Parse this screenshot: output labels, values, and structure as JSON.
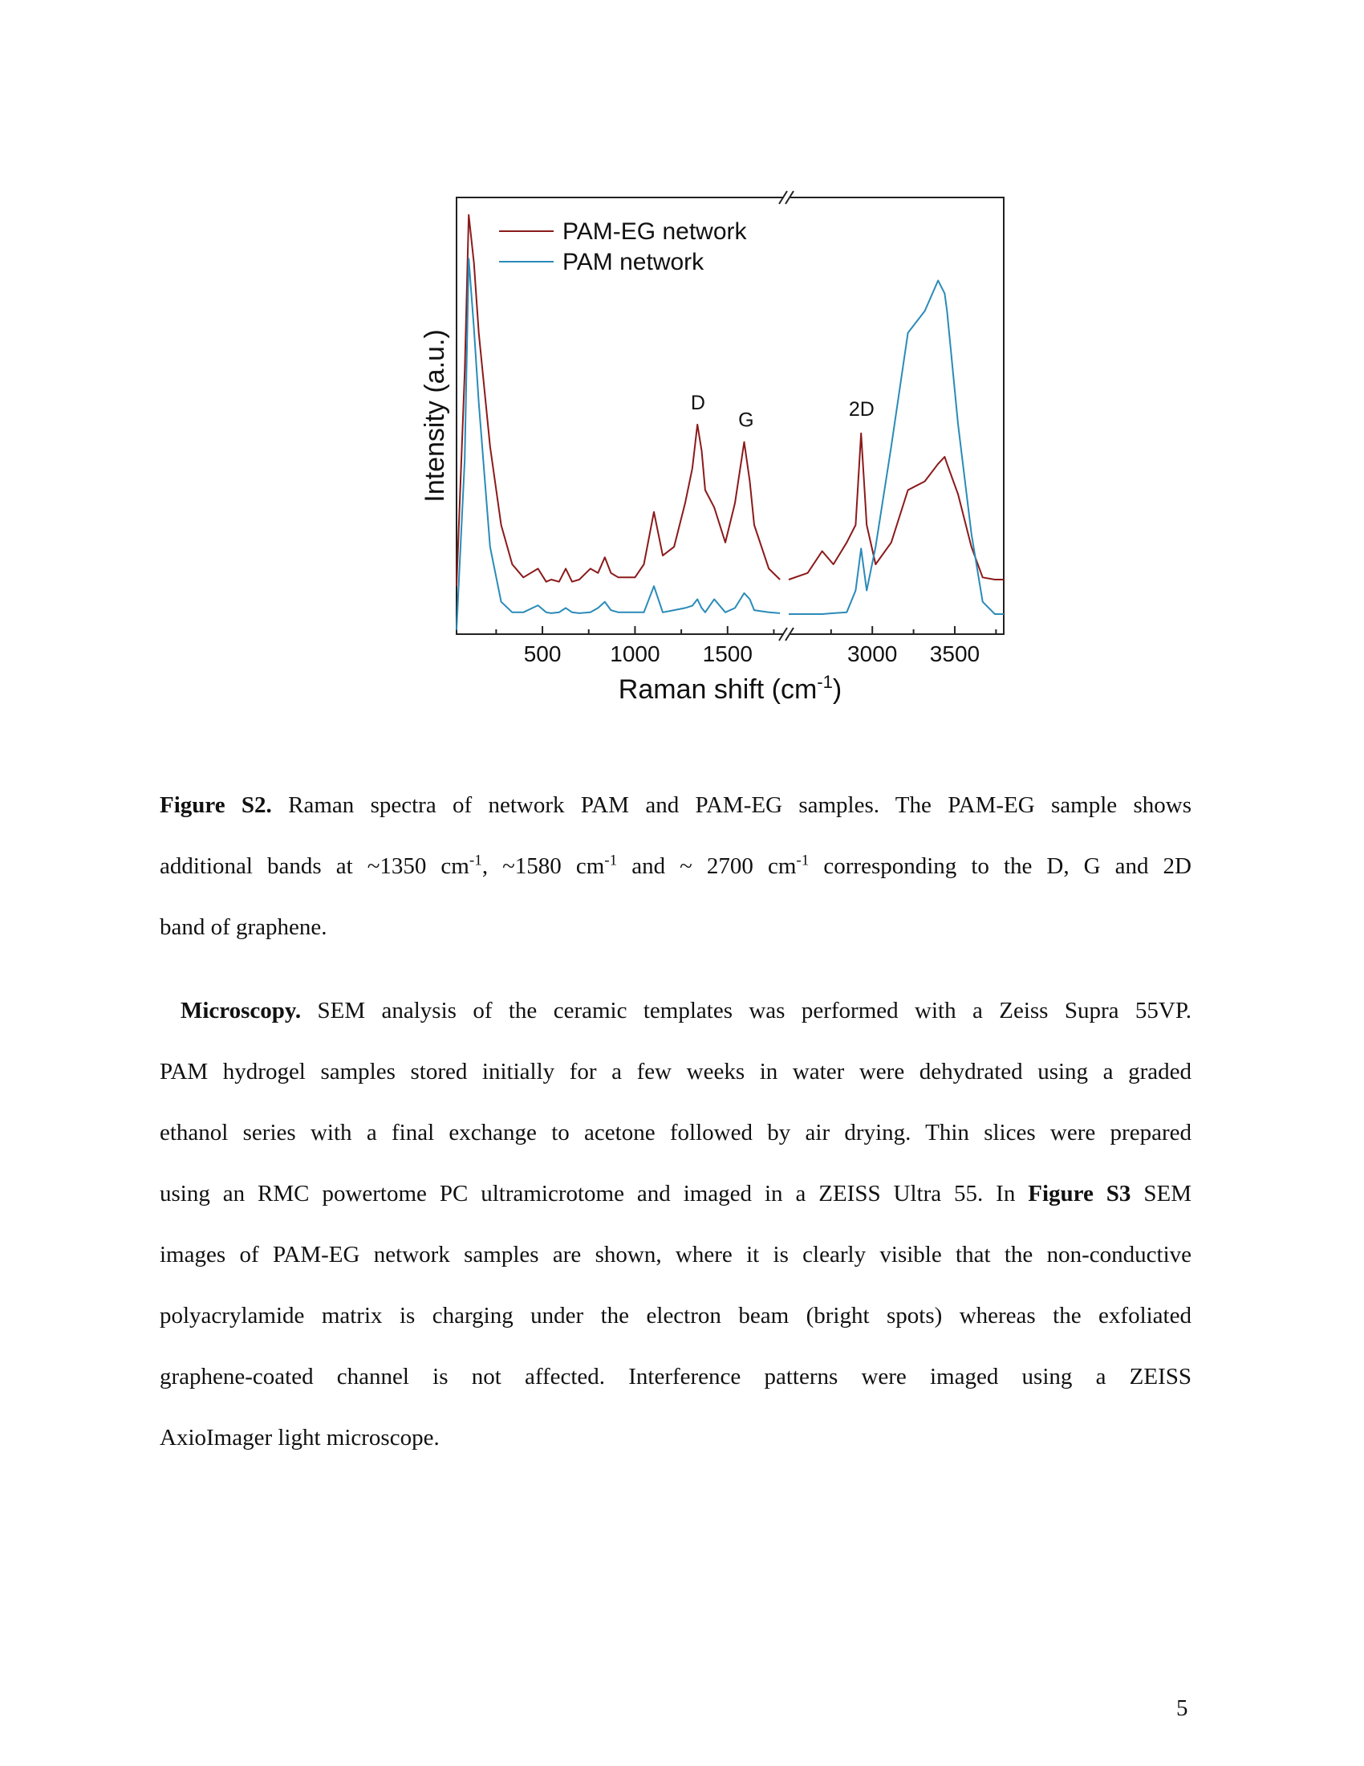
{
  "chart_data": {
    "type": "line",
    "ylabel": "Intensity (a.u.)",
    "xlabel": [
      "Raman shift (cm",
      "-1",
      ")"
    ],
    "ylim": [
      0,
      100
    ],
    "legend": "upper left",
    "x_segments": [
      {
        "xlim": [
          36,
          1813
        ],
        "xticks": [
          500,
          1000,
          1500
        ],
        "minor_xticks": [
          250,
          750,
          1250,
          1750
        ]
      },
      {
        "xlim": [
          2493,
          3797
        ],
        "xticks": [
          3000,
          3500
        ],
        "minor_xticks": [
          2750,
          3250,
          3750
        ]
      }
    ],
    "series": [
      {
        "name": "PAM-EG network",
        "color": "#8b1a1a",
        "segments": [
          {
            "x": [
              36,
              80,
              102,
              130,
              156,
              217,
              277,
              337,
              397,
              476,
              520,
              548,
              590,
              626,
              660,
              699,
              759,
              800,
              837,
              870,
              910,
              1000,
              1048,
              1102,
              1150,
              1211,
              1271,
              1310,
              1337,
              1360,
              1379,
              1428,
              1488,
              1540,
              1590,
              1620,
              1644,
              1723,
              1783
            ],
            "values": [
              11,
              60,
              96,
              85,
              69,
              43,
              25,
              16,
              13,
              15,
              12,
              12.5,
              12,
              15,
              12,
              12.5,
              15,
              14,
              17.6,
              14,
              13,
              13,
              16,
              28,
              18,
              20,
              30,
              38,
              48,
              42,
              33,
              29,
              21,
              30,
              44,
              35,
              25,
              15,
              12.5
            ]
          },
          {
            "x": [
              2493,
              2608,
              2696,
              2764,
              2845,
              2899,
              2932,
              2966,
              3020,
              3115,
              3216,
              3318,
              3399,
              3439,
              3453,
              3520,
              3601,
              3669,
              3743,
              3797
            ],
            "values": [
              12.5,
              14,
              19,
              16,
              21,
              25,
              46,
              25,
              16,
              21,
              33,
              35,
              39,
              40.6,
              39,
              32,
              20,
              13,
              12.5,
              12.5
            ]
          }
        ]
      },
      {
        "name": "PAM network",
        "color": "#2a8bb8",
        "segments": [
          {
            "x": [
              36,
              80,
              102,
              130,
              156,
              217,
              277,
              337,
              397,
              476,
              520,
              548,
              590,
              626,
              660,
              699,
              759,
              800,
              837,
              870,
              910,
              1000,
              1048,
              1102,
              1150,
              1211,
              1271,
              1310,
              1337,
              1360,
              1379,
              1428,
              1488,
              1540,
              1590,
              1620,
              1644,
              1723,
              1783
            ],
            "values": [
              1,
              40,
              86,
              70,
              53,
              20,
              7.4,
              5,
              5,
              6.6,
              5,
              4.8,
              5,
              6,
              5,
              4.8,
              5,
              6,
              7.4,
              5.5,
              5,
              5,
              5,
              11,
              5,
              5.5,
              6,
              6.5,
              8,
              6,
              5,
              8,
              5,
              6,
              9.4,
              8,
              5.5,
              5,
              4.8
            ]
          },
          {
            "x": [
              2493,
              2608,
              2696,
              2764,
              2845,
              2899,
              2932,
              2966,
              3020,
              3115,
              3216,
              3318,
              3399,
              3439,
              3453,
              3520,
              3601,
              3669,
              3743,
              3797
            ],
            "values": [
              4.6,
              4.6,
              4.6,
              4.8,
              5,
              10,
              19.6,
              10,
              20,
              43,
              69,
              74,
              81,
              78,
              74,
              48,
              23,
              7.4,
              4.6,
              4.6
            ]
          }
        ]
      }
    ],
    "annotations": [
      {
        "text": "D",
        "x": 1340,
        "y": 51.5
      },
      {
        "text": "G",
        "x": 1600,
        "y": 47.5
      },
      {
        "text": "2D",
        "x": 2935,
        "y": 50
      }
    ]
  },
  "paragraphs": [
    [
      [
        {
          "text": "Figure S2.",
          "bold": true
        },
        {
          "text": " Raman spectra of network PAM and PAM-EG samples. The PAM-EG sample shows"
        }
      ],
      [
        {
          "text": "additional bands at ~1350 cm"
        },
        {
          "text": "-1",
          "sup": true
        },
        {
          "text": ", ~1580 cm"
        },
        {
          "text": "-1",
          "sup": true
        },
        {
          "text": " and ~ 2700 cm"
        },
        {
          "text": "-1",
          "sup": true
        },
        {
          "text": " corresponding to the D, G and 2D"
        }
      ],
      [
        {
          "text": "band of graphene."
        }
      ]
    ],
    [
      [
        {
          "text": "Microscopy.",
          "bold": true
        },
        {
          "text": " SEM analysis of the ceramic templates was performed with a Zeiss Supra 55VP."
        }
      ],
      [
        {
          "text": "PAM hydrogel samples stored initially for a few weeks in water were dehydrated using a graded"
        }
      ],
      [
        {
          "text": "ethanol series with a final exchange to acetone followed by air drying. Thin slices were prepared"
        }
      ],
      [
        {
          "text": "using an RMC powertome PC ultramicrotome and imaged in a ZEISS Ultra 55. In "
        },
        {
          "text": "Figure S3",
          "bold": true
        },
        {
          "text": " SEM"
        }
      ],
      [
        {
          "text": "images of PAM-EG network samples are shown, where it is clearly visible that the non-conductive"
        }
      ],
      [
        {
          "text": "polyacrylamide matrix is charging under the electron beam (bright spots) whereas the exfoliated"
        }
      ],
      [
        {
          "text": "graphene-coated channel is not affected. Interference patterns were imaged using a ZEISS"
        }
      ],
      [
        {
          "text": "AxioImager light microscope."
        }
      ]
    ]
  ],
  "page_number": "5"
}
